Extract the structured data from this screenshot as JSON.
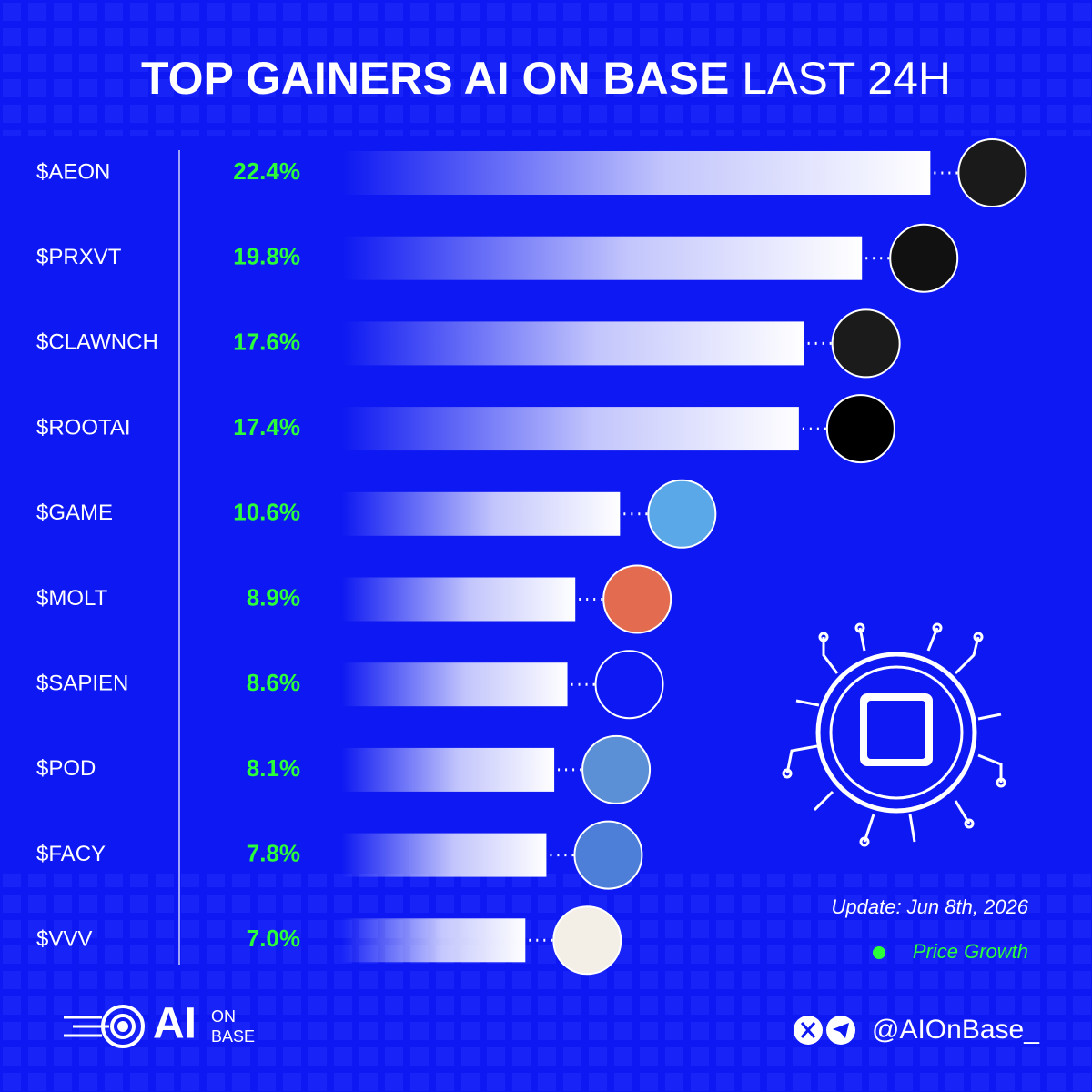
{
  "chart_data": {
    "type": "bar",
    "title": "TOP GAINERS AI ON BASE",
    "title_suffix": "LAST 24H",
    "categories": [
      "$AEON",
      "$PRXVT",
      "$CLAWNCH",
      "$ROOTAI",
      "$GAME",
      "$MOLT",
      "$SAPIEN",
      "$POD",
      "$FACY",
      "$VVV"
    ],
    "series": [
      {
        "name": "Price Growth",
        "color": "#2bff3a",
        "values": [
          22.4,
          19.8,
          17.6,
          17.4,
          10.6,
          8.9,
          8.6,
          8.1,
          7.8,
          7.0
        ],
        "value_labels": [
          "22.4%",
          "19.8%",
          "17.6%",
          "17.4%",
          "10.6%",
          "8.9%",
          "8.6%",
          "8.1%",
          "7.8%",
          "7.0%"
        ]
      }
    ],
    "update": "Update: Jun 8th, 2026",
    "brand": {
      "name": "AI",
      "sub1": "ON",
      "sub2": "BASE",
      "handle": "@AIOnBase_"
    }
  }
}
